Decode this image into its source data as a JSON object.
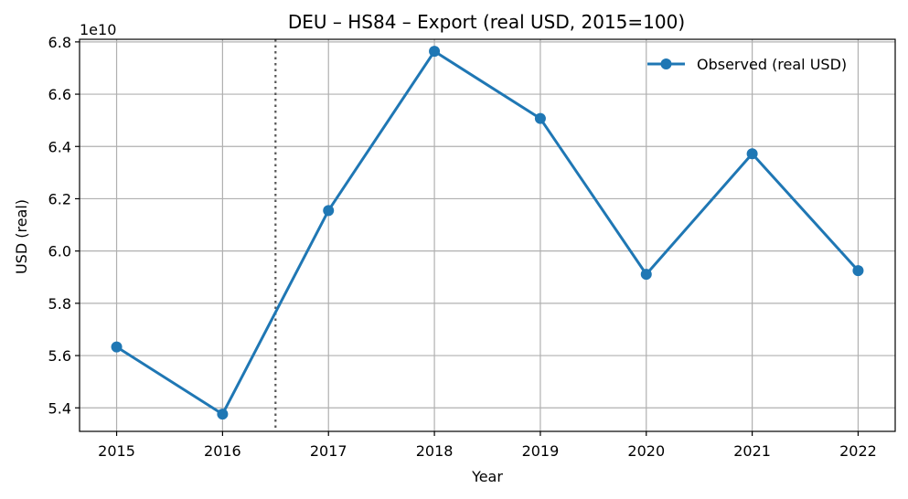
{
  "chart_data": {
    "type": "line",
    "title": "DEU – HS84 – Export (real USD, 2015=100)",
    "xlabel": "Year",
    "ylabel": "USD (real)",
    "y_offset_label": "1e10",
    "x": [
      2015,
      2016,
      2017,
      2018,
      2019,
      2020,
      2021,
      2022
    ],
    "xlim": [
      2014.65,
      2022.35
    ],
    "ylim": [
      5.31,
      6.81
    ],
    "x_ticks": [
      "2015",
      "2016",
      "2017",
      "2018",
      "2019",
      "2020",
      "2021",
      "2022"
    ],
    "y_ticks": [
      "5.4",
      "5.6",
      "5.8",
      "6.0",
      "6.2",
      "6.4",
      "6.6",
      "6.8"
    ],
    "grid": true,
    "legend_position": "top-right",
    "vertical_marker_x": 2016.5,
    "vertical_marker_style": "dotted",
    "series": [
      {
        "name": "Observed (real USD)",
        "values": [
          5.633,
          5.376,
          6.155,
          6.764,
          6.507,
          5.911,
          6.372,
          5.925
        ],
        "color": "#1f77b4",
        "marker": "circle"
      }
    ]
  }
}
